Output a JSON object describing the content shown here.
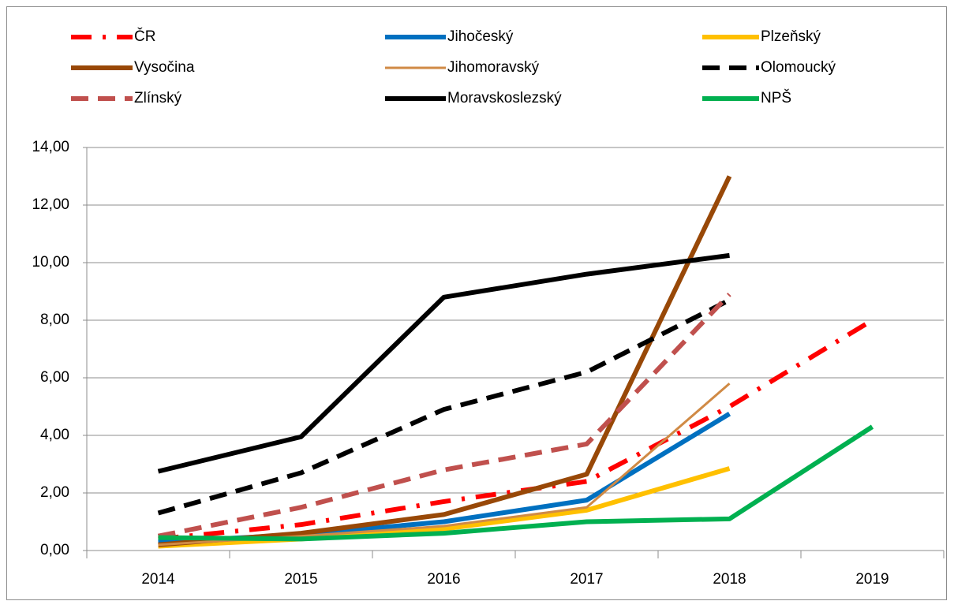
{
  "chart_data": {
    "type": "line",
    "categories": [
      "2014",
      "2015",
      "2016",
      "2017",
      "2018",
      "2019"
    ],
    "ylim": [
      0,
      14
    ],
    "yticks": [
      {
        "value": 0,
        "label": "0,00"
      },
      {
        "value": 2,
        "label": "2,00"
      },
      {
        "value": 4,
        "label": "4,00"
      },
      {
        "value": 6,
        "label": "6,00"
      },
      {
        "value": 8,
        "label": "8,00"
      },
      {
        "value": 10,
        "label": "10,00"
      },
      {
        "value": 12,
        "label": "12,00"
      },
      {
        "value": 14,
        "label": "14,00"
      }
    ],
    "grid": true,
    "legend": "top",
    "series": [
      {
        "name": "ČR",
        "color": "#ff0000",
        "style": "dashdot",
        "width": 6,
        "values": [
          0.4,
          0.9,
          1.7,
          2.4,
          5.0,
          8.0
        ]
      },
      {
        "name": "Jihočeský",
        "color": "#0070c0",
        "style": "solid",
        "width": 6,
        "values": [
          0.3,
          0.55,
          1.0,
          1.75,
          4.75,
          null
        ]
      },
      {
        "name": "Plzeňský",
        "color": "#ffc000",
        "style": "solid",
        "width": 6,
        "values": [
          0.15,
          0.4,
          0.75,
          1.4,
          2.85,
          null
        ]
      },
      {
        "name": "Vysočina",
        "color": "#984807",
        "style": "solid",
        "width": 6,
        "values": [
          0.2,
          0.6,
          1.25,
          2.65,
          13.0,
          null
        ]
      },
      {
        "name": "Jihomoravský",
        "color": "#d08a45",
        "style": "solid",
        "width": 3,
        "values": [
          0.2,
          0.5,
          0.85,
          1.5,
          5.8,
          null
        ]
      },
      {
        "name": "Olomoucký",
        "color": "#000000",
        "style": "dash",
        "width": 6,
        "values": [
          1.3,
          2.7,
          4.9,
          6.2,
          8.7,
          null
        ]
      },
      {
        "name": "Zlínský",
        "color": "#c0504d",
        "style": "dash",
        "width": 6,
        "values": [
          0.5,
          1.5,
          2.8,
          3.7,
          8.9,
          null
        ]
      },
      {
        "name": "Moravskoslezský",
        "color": "#000000",
        "style": "solid",
        "width": 6,
        "values": [
          2.75,
          3.95,
          8.8,
          9.6,
          10.25,
          null
        ]
      },
      {
        "name": "NPŠ",
        "color": "#00b050",
        "style": "solid",
        "width": 6,
        "values": [
          0.45,
          0.4,
          0.6,
          1.0,
          1.1,
          4.3
        ]
      }
    ]
  }
}
